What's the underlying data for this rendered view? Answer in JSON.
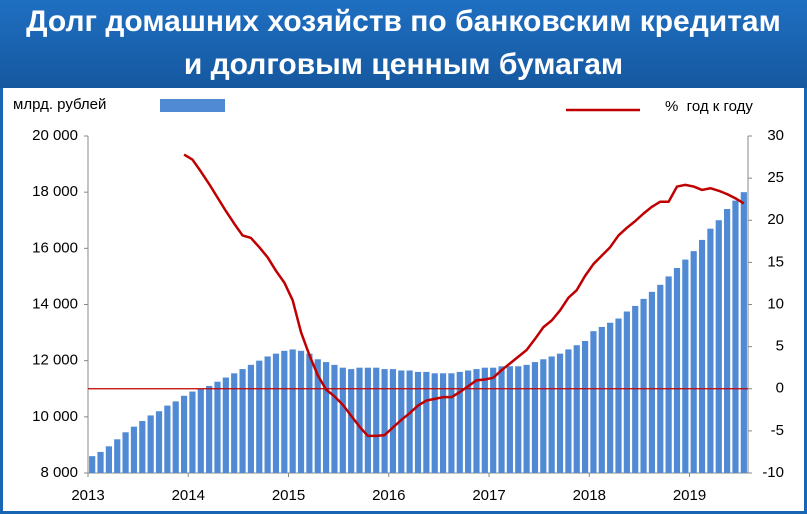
{
  "chart_data": {
    "type": "bar_line",
    "title": [
      "Долг домашних хозяйств по банковским кредитам",
      "и долговым ценным бумагам"
    ],
    "categories": [
      "2013",
      null,
      null,
      null,
      null,
      null,
      null,
      null,
      null,
      null,
      null,
      null,
      "2014",
      null,
      null,
      null,
      null,
      null,
      null,
      null,
      null,
      null,
      null,
      null,
      "2015",
      null,
      null,
      null,
      null,
      null,
      null,
      null,
      null,
      null,
      null,
      null,
      "2016",
      null,
      null,
      null,
      null,
      null,
      null,
      null,
      null,
      null,
      null,
      null,
      "2017",
      null,
      null,
      null,
      null,
      null,
      null,
      null,
      null,
      null,
      null,
      null,
      "2018",
      null,
      null,
      null,
      null,
      null,
      null,
      null,
      null,
      null,
      null,
      null,
      "2019",
      null,
      null,
      null,
      null,
      null,
      null
    ],
    "series": [
      {
        "name": "млрд. рублей",
        "type": "bar",
        "color": "#5089d4",
        "values": [
          8600,
          8750,
          8950,
          9200,
          9450,
          9650,
          9850,
          10050,
          10200,
          10400,
          10550,
          10750,
          10900,
          11000,
          11100,
          11250,
          11400,
          11550,
          11700,
          11850,
          12000,
          12150,
          12250,
          12350,
          12400,
          12350,
          12250,
          12050,
          11950,
          11850,
          11750,
          11700,
          11750,
          11750,
          11750,
          11700,
          11700,
          11650,
          11650,
          11600,
          11600,
          11550,
          11550,
          11550,
          11600,
          11650,
          11700,
          11750,
          11750,
          11800,
          11800,
          11800,
          11850,
          11950,
          12050,
          12150,
          12250,
          12400,
          12550,
          12700,
          13050,
          13200,
          13350,
          13500,
          13750,
          13950,
          14200,
          14450,
          14700,
          15000,
          15300,
          15600,
          15900,
          16300,
          16700,
          17000,
          17400,
          17700,
          18000
        ]
      },
      {
        "name": "%  год к году",
        "type": "line",
        "axis": "y2",
        "color": "#c00000",
        "values": [
          null,
          null,
          null,
          null,
          null,
          null,
          null,
          null,
          null,
          null,
          null,
          27.8,
          27.2,
          25.8,
          24.3,
          22.7,
          21.1,
          19.6,
          18.2,
          17.9,
          16.8,
          15.6,
          14,
          12.6,
          10.5,
          6.7,
          4,
          1.6,
          -0.1,
          -0.9,
          -1.9,
          -3.2,
          -4.5,
          -5.6,
          -5.6,
          -5.5,
          -4.6,
          -3.7,
          -2.9,
          -2,
          -1.4,
          -1.2,
          -1,
          -1,
          -0.4,
          0.3,
          1,
          1.1,
          1.3,
          2.2,
          3,
          3.8,
          4.6,
          5.9,
          7.3,
          8.1,
          9.3,
          10.8,
          11.7,
          13.4,
          14.8,
          15.8,
          16.8,
          18.2,
          19.1,
          19.9,
          20.8,
          21.6,
          22.2,
          22.2,
          24,
          24.2,
          24,
          23.6,
          23.8,
          23.5,
          23.1,
          22.6,
          22
        ]
      }
    ],
    "ylim": [
      8000,
      20000
    ],
    "yticks": [
      {
        "value": 8000,
        "label": "8 000"
      },
      {
        "value": 10000,
        "label": "10 000"
      },
      {
        "value": 12000,
        "label": "12 000"
      },
      {
        "value": 14000,
        "label": "14 000"
      },
      {
        "value": 16000,
        "label": "16 000"
      },
      {
        "value": 18000,
        "label": "18 000"
      },
      {
        "value": 20000,
        "label": "20 000"
      }
    ],
    "y2lim": [
      -10,
      30
    ],
    "y2ticks": [
      -10,
      -5,
      0,
      5,
      10,
      15,
      20,
      25,
      30
    ],
    "reference_line": {
      "axis": "y2",
      "value": 0,
      "color": "#c00000"
    },
    "grid": false
  }
}
